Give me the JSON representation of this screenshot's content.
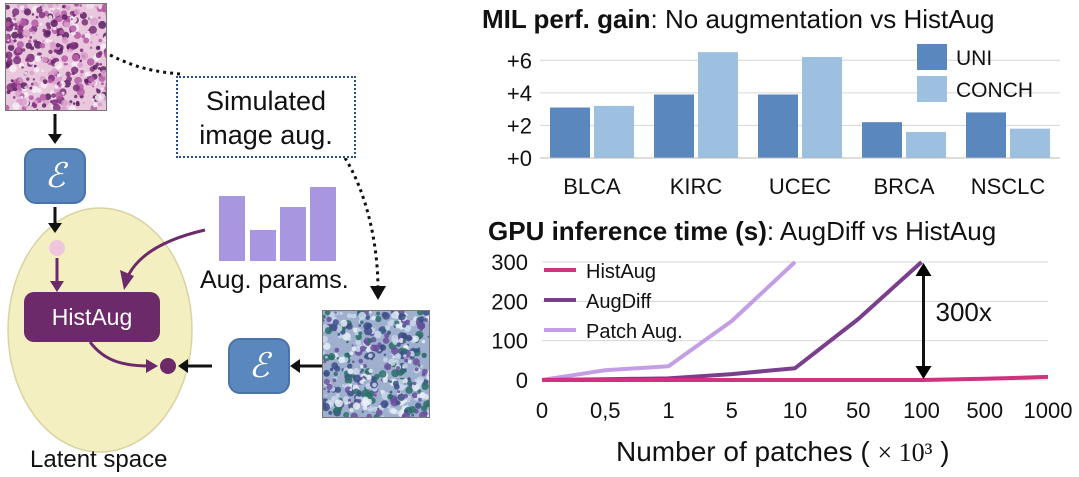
{
  "diagram": {
    "aug_box_line1": "Simulated",
    "aug_box_line2": "image aug.",
    "encoder_symbol": "ℰ",
    "histaug_label": "HistAug",
    "aug_params_label": "Aug. params.",
    "latent_space_label": "Latent space",
    "colors": {
      "encoder": "#5b87bf",
      "histaug": "#6d2a6a",
      "latent": "#f3efc0",
      "params_bars": "#a897e0"
    }
  },
  "chart_data": [
    {
      "type": "bar",
      "title_bold": "MIL perf. gain",
      "title_rest": ": No augmentation vs HistAug",
      "categories": [
        "BLCA",
        "KIRC",
        "UCEC",
        "BRCA",
        "NSCLC"
      ],
      "series": [
        {
          "name": "UNI",
          "values": [
            3.1,
            3.9,
            3.9,
            2.2,
            2.8
          ],
          "color": "#5b87bf"
        },
        {
          "name": "CONCH",
          "values": [
            3.2,
            6.5,
            6.2,
            1.6,
            1.8
          ],
          "color": "#9dbfe0"
        }
      ],
      "yticks": [
        "+0",
        "+2",
        "+4",
        "+6"
      ],
      "ylim": [
        0,
        7
      ],
      "legend": "top-right"
    },
    {
      "type": "line",
      "title_bold": "GPU inference time (s)",
      "title_rest": ": AugDiff vs HistAug",
      "x_categories": [
        "0",
        "0,5",
        "1",
        "5",
        "10",
        "50",
        "100",
        "500",
        "1000"
      ],
      "xlabel": "Number of patches (",
      "xlabel_math": "× 10³",
      "xlabel_close": ")",
      "yticks": [
        "0",
        "100",
        "200",
        "300"
      ],
      "ylim": [
        0,
        300
      ],
      "series": [
        {
          "name": "HistAug",
          "color": "#d1327e",
          "x": [
            0,
            1,
            2,
            3,
            4,
            5,
            6,
            7,
            8
          ],
          "y": [
            0,
            0,
            0,
            0,
            0,
            0,
            0,
            3,
            8
          ]
        },
        {
          "name": "AugDiff",
          "color": "#7a3f8c",
          "x": [
            0,
            1,
            2,
            3,
            4,
            5,
            6
          ],
          "y": [
            0,
            2,
            4,
            15,
            30,
            155,
            300
          ]
        },
        {
          "name": "Patch Aug.",
          "color": "#c39ee6",
          "x": [
            0,
            1,
            2,
            3,
            4
          ],
          "y": [
            0,
            25,
            35,
            150,
            300
          ]
        }
      ],
      "annotation": "300x",
      "legend": "top-left"
    }
  ]
}
